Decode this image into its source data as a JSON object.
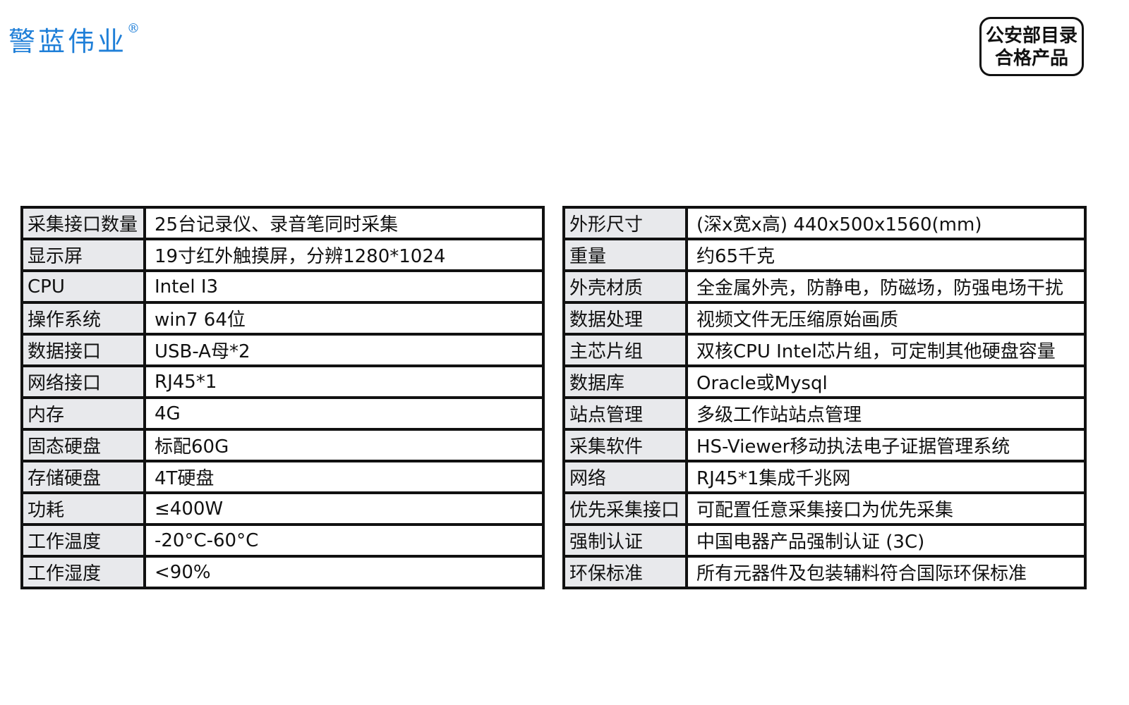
{
  "brand": {
    "logo_text": "警蓝伟业",
    "registered": "®",
    "brand_color": "#1f7fd8"
  },
  "badge": {
    "line1": "公安部目录",
    "line2": "合格产品"
  },
  "left_table": [
    {
      "label": "采集接口数量",
      "value": "25台记录仪、录音笔同时采集"
    },
    {
      "label": "显示屏",
      "value": "19寸红外触摸屏，分辨1280*1024"
    },
    {
      "label": "CPU",
      "value": "Intel I3"
    },
    {
      "label": "操作系统",
      "value": "win7 64位"
    },
    {
      "label": "数据接口",
      "value": "USB-A母*2"
    },
    {
      "label": "网络接口",
      "value": "RJ45*1"
    },
    {
      "label": "内存",
      "value": "4G"
    },
    {
      "label": "固态硬盘",
      "value": "标配60G"
    },
    {
      "label": "存储硬盘",
      "value": "4T硬盘"
    },
    {
      "label": "功耗",
      "value": "≤400W"
    },
    {
      "label": "工作温度",
      "value": "-20°C-60°C"
    },
    {
      "label": "工作湿度",
      "value": "<90%"
    }
  ],
  "right_table": [
    {
      "label": "外形尺寸",
      "value": "(深x宽x高) 440x500x1560(mm)"
    },
    {
      "label": "重量",
      "value": "约65千克"
    },
    {
      "label": "外壳材质",
      "value": "全金属外壳，防静电，防磁场，防强电场干扰"
    },
    {
      "label": "数据处理",
      "value": "视频文件无压缩原始画质"
    },
    {
      "label": "主芯片组",
      "value": "双核CPU Intel芯片组，可定制其他硬盘容量"
    },
    {
      "label": "数据库",
      "value": "Oracle或Mysql"
    },
    {
      "label": "站点管理",
      "value": "多级工作站站点管理"
    },
    {
      "label": "采集软件",
      "value": "HS-Viewer移动执法电子证据管理系统"
    },
    {
      "label": "网络",
      "value": "RJ45*1集成千兆网"
    },
    {
      "label": "优先采集接口",
      "value": "可配置任意采集接口为优先采集"
    },
    {
      "label": "强制认证",
      "value": "中国电器产品强制认证 (3C)"
    },
    {
      "label": "环保标准",
      "value": "所有元器件及包装辅料符合国际环保标准"
    }
  ]
}
